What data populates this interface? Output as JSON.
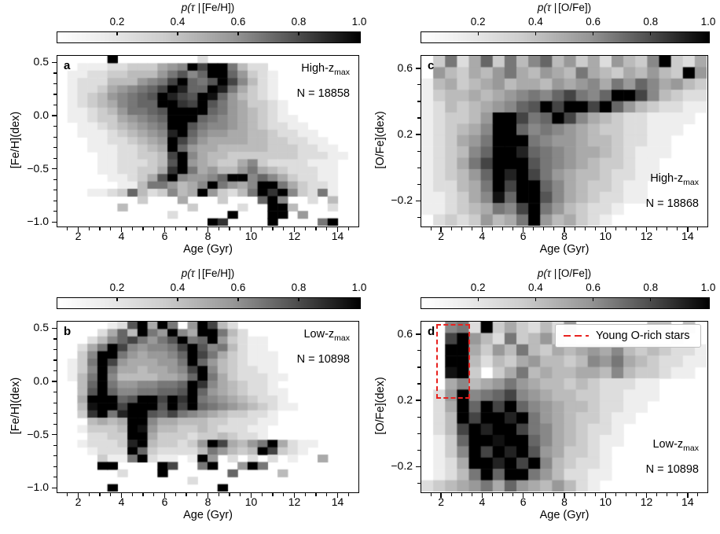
{
  "figure": {
    "background": "#ffffff"
  },
  "colors": {
    "red_accent": "#e8221f",
    "axis_color": "#000000",
    "legend_border": "#bfbfbf"
  },
  "panels_order": [
    "a",
    "c",
    "b",
    "d"
  ],
  "chart_data": [
    {
      "id": "a",
      "type": "heatmap",
      "letter": "a",
      "cbar_title_math": "p(τ |",
      "cbar_title_bracket": "[Fe/H])",
      "cbar_ticks": [
        "0.2",
        "0.4",
        "0.6",
        "0.8",
        "1.0"
      ],
      "cbar_tick_values": [
        0.2,
        0.4,
        0.6,
        0.8,
        1.0
      ],
      "cbar_range": [
        0,
        1
      ],
      "group_main": "High-z",
      "group_sub": "max",
      "count_label": "N = 18858",
      "anno_position": "top-right",
      "xlabel": "Age (Gyr)",
      "ylabel": "[Fe/H](dex)",
      "x_range": [
        1,
        15
      ],
      "y_range": [
        -1.05,
        0.57
      ],
      "xtick_values": [
        2,
        4,
        6,
        8,
        10,
        12,
        14
      ],
      "xtick_labels": [
        "2",
        "4",
        "6",
        "8",
        "10",
        "12",
        "14"
      ],
      "ytick_values": [
        0.5,
        0.0,
        -0.5,
        -1.0
      ],
      "ytick_labels": [
        "0.5",
        "0.0",
        "−0.5",
        "−1.0"
      ],
      "x_minor_step": 0.5,
      "y_minor_step": 0.1,
      "grid_cols": 30,
      "grid_rows": 23,
      "grid_encoding": "each char is one cell, hex 0–f = probability 0–1 (0=white, f=black); rows listed top (Fe/H=0.53) to bottom (Fe/H=-1.01), cols left (age=1.2 Gyr) to right (age=14.8 Gyr)",
      "grid": [
        "00000f000000002000000000000000",
        "0011122333567fbff8422000000000",
        "011223344468a79ff9632100000000",
        "01222444678bf98afb742100000000",
        "0122356789bfd99fd8532100000000",
        "012346789afdbafe96432100000000",
        "0123457899ffcbfa86533210000000",
        "0112346889affff986543210000000",
        "01123356789fff9876543211000000",
        "00112345678ffa8776543221100000",
        "00111234567df97665544322110000",
        "00011223456fb86555544332211000",
        "00011122345f965544444333221100",
        "00001122334bf75443333333222110",
        "00001122234af65433573222211100",
        "00001122335cf85644685432221100",
        "0000011235af76679ff79753221100",
        "000000114886457f8657ff85322100",
        "00011239423745f63248fcf7328100",
        "000000003000500030009f70020400",
        "000000400000030000200ff4000200",
        "00000000000200000f000ff0600000",
        "000000000000000fc0000f00008f00"
      ]
    },
    {
      "id": "c",
      "type": "heatmap",
      "letter": "c",
      "cbar_title_math": "p(τ |",
      "cbar_title_bracket": "[O/Fe])",
      "cbar_ticks": [
        "0.2",
        "0.4",
        "0.6",
        "0.8",
        "1.0"
      ],
      "cbar_tick_values": [
        0.2,
        0.4,
        0.6,
        0.8,
        1.0
      ],
      "cbar_range": [
        0,
        1
      ],
      "group_main": "High-z",
      "group_sub": "max",
      "count_label": "N = 18868",
      "anno_position": "bottom-right",
      "xlabel": "Age (Gyr)",
      "ylabel": "[O/Fe](dex)",
      "x_range": [
        1,
        15
      ],
      "y_range": [
        -0.36,
        0.68
      ],
      "xtick_values": [
        2,
        4,
        6,
        8,
        10,
        12,
        14
      ],
      "xtick_labels": [
        "2",
        "4",
        "6",
        "8",
        "10",
        "12",
        "14"
      ],
      "ytick_values": [
        0.6,
        0.2,
        -0.2
      ],
      "ytick_labels": [
        "0.6",
        "0.2",
        "−0.2"
      ],
      "x_minor_step": 0.5,
      "y_minor_step": 0.1,
      "grid_cols": 24,
      "grid_rows": 15,
      "grid_encoding": "each char is one cell, hex 0–f = probability 0–1 (0=white, f=black); rows listed top (O/Fe=0.65) to bottom (O/Fe=-0.33), cols left (age=1.3 Gyr) to right (age=14.7 Gyr)",
      "grid": [
        "03825938479463526437f325",
        "0643546854654854354643f6",
        "145345645546567586975643",
        "134454567879b879ffb74322",
        "124345679afbffbf96432211",
        "123346ffb89fb75432211110",
        "123457ff9787654332211100",
        "123568fff876654432211000",
        "123479ffd987655432111000",
        "12358bfffa87654332110000",
        "123469fdfb86544322110000",
        "122458fbff97543321100000",
        "112357e9ffa7543221100000",
        "11234587bf86432210000000",
        "023236458f64532100000000"
      ]
    },
    {
      "id": "b",
      "type": "heatmap",
      "letter": "b",
      "cbar_title_math": "p(τ |",
      "cbar_title_bracket": "[Fe/H])",
      "cbar_ticks": [
        "0.2",
        "0.4",
        "0.6",
        "0.8",
        "1.0"
      ],
      "cbar_tick_values": [
        0.2,
        0.4,
        0.6,
        0.8,
        1.0
      ],
      "cbar_range": [
        0,
        1
      ],
      "group_main": "Low-z",
      "group_sub": "max",
      "count_label": "N = 10898",
      "anno_position": "top-right",
      "xlabel": "Age (Gyr)",
      "ylabel": "[Fe/H](dex)",
      "x_range": [
        1,
        15
      ],
      "y_range": [
        -1.05,
        0.57
      ],
      "xtick_values": [
        2,
        4,
        6,
        8,
        10,
        12,
        14
      ],
      "xtick_labels": [
        "2",
        "4",
        "6",
        "8",
        "10",
        "12",
        "14"
      ],
      "ytick_values": [
        0.5,
        0.0,
        -0.5,
        -1.0
      ],
      "ytick_labels": [
        "0.5",
        "0.0",
        "−0.5",
        "−1.0"
      ],
      "x_minor_step": 0.5,
      "y_minor_step": 0.1,
      "grid_cols": 30,
      "grid_rows": 23,
      "grid_encoding": "each char is one cell, hex 0–f = probability 0–1 (0=white, f=black); rows listed top (Fe/H=0.53) to bottom (Fe/H=-1.01), cols left (age=1.2 Gyr) to right (age=14.8 Gyr)",
      "grid": [
        "0000012af5f806fb42000000000000",
        "00002594f86f75ff84200000000000",
        "0002479b868af89f63211000000000",
        "00258fb76778bfa784211000000000",
        "0037ff8656679fb853211100000000",
        "0138fb6555668f9643211100000000",
        "0137f85545567bf743221100000000",
        "0148f744445569f853222110000000",
        "0049f86677889fc754322100000000",
        "004af9778899af9654322110000000",
        "005fff9affbfcf8765432210000000",
        "004effbfffafbf9876543211000000",
        "003cf8dffa9b876543322100000000",
        "0004545ff755444332221100000000",
        "0013334fe644334322211000000000",
        "0002233ff533323343221000000000",
        "0012223df433236fb5468f52110000",
        "0001222f932222486434fb32100000",
        "00003118f21101f602020201005000",
        "0000ff0000fb008f006f8000000000",
        "0000002000f0000009000040000000",
        "000000000000020000000000000000",
        "00000f0000000000f0000000000000"
      ]
    },
    {
      "id": "d",
      "type": "heatmap",
      "letter": "d",
      "cbar_title_math": "p(τ |",
      "cbar_title_bracket": "[O/Fe])",
      "cbar_ticks": [
        "0.2",
        "0.4",
        "0.6",
        "0.8",
        "1.0"
      ],
      "cbar_tick_values": [
        0.2,
        0.4,
        0.6,
        0.8,
        1.0
      ],
      "cbar_range": [
        0,
        1
      ],
      "group_main": "Low-z",
      "group_sub": "max",
      "count_label": "N = 10898",
      "anno_position": "bottom-right",
      "xlabel": "Age (Gyr)",
      "ylabel": "[O/Fe](dex)",
      "x_range": [
        1,
        15
      ],
      "y_range": [
        -0.36,
        0.68
      ],
      "xtick_values": [
        2,
        4,
        6,
        8,
        10,
        12,
        14
      ],
      "xtick_labels": [
        "2",
        "4",
        "6",
        "8",
        "10",
        "12",
        "14"
      ],
      "ytick_values": [
        0.6,
        0.2,
        -0.2
      ],
      "ytick_labels": [
        "0.6",
        "0.2",
        "−0.2"
      ],
      "x_minor_step": 0.5,
      "y_minor_step": 0.1,
      "grid_cols": 24,
      "grid_rows": 15,
      "grid_encoding": "each char is one cell, hex 0–f = probability 0–1 (0=white, f=black); rows listed top (O/Fe=0.65) to bottom (O/Fe=-0.33), cols left (age=1.3 Gyr) to right (age=14.7 Gyr)",
      "grid": [
        "00782f353242600000044040",
        "00bf64283463200000000300",
        "00ff53648435456574343221",
        "00ff42435644347685432211",
        "00ef30358454455474332110",
        "005745686544343222110000",
        "026f789b7654433221110000",
        "025f9fbf9765443221100000",
        "024fbffdf865433211000000",
        "024bfdffb875432210000000",
        "0139ffeff975432110000000",
        "0137fbfdfa65332100000000",
        "0125ffdfbf74322100000000",
        "01248f9ff864221100000000",
        "234568596546421000000000"
      ],
      "legend_label": "Young O-rich stars",
      "highlight_box": {
        "x0": 1.77,
        "x1": 3.42,
        "y0": 0.21,
        "y1": 0.66,
        "style": "dashed",
        "color_ref": "red_accent"
      }
    }
  ]
}
